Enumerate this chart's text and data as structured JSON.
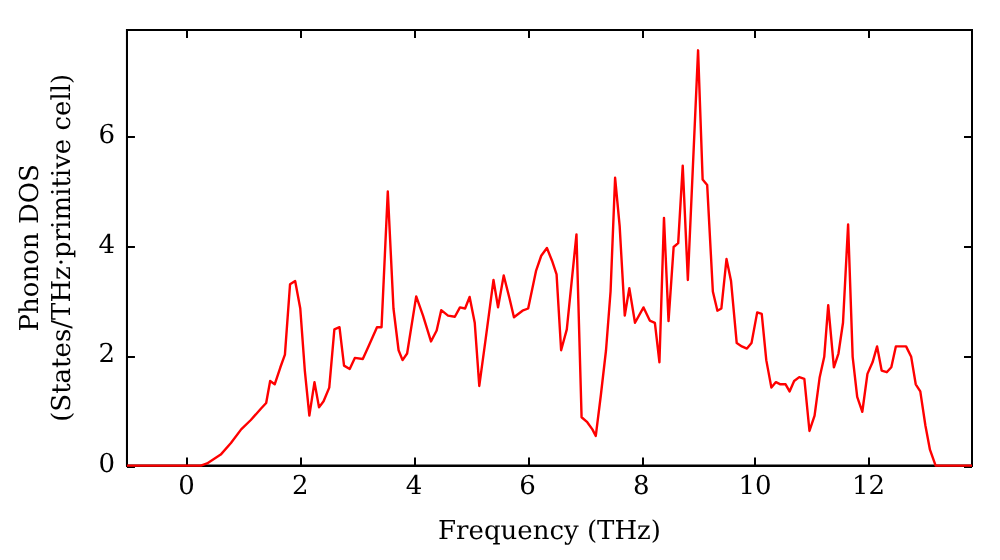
{
  "chart_data": {
    "type": "line",
    "xlabel": "Frequency (THz)",
    "ylabel": "Phonon DOS\n(States/THz·primitive cell)",
    "xlim": [
      -1.05,
      13.82
    ],
    "ylim": [
      0,
      7.93
    ],
    "xticks": [
      0,
      2,
      4,
      6,
      8,
      10,
      12
    ],
    "yticks": [
      0,
      2,
      4,
      6
    ],
    "grid": false,
    "legend": false,
    "marker": "none",
    "line_style": "solid",
    "series": [
      {
        "color": "#ff0000",
        "x": [
          -1.05,
          0.25,
          0.36,
          0.6,
          0.78,
          0.96,
          1.13,
          1.31,
          1.4,
          1.47,
          1.55,
          1.65,
          1.73,
          1.82,
          1.91,
          2.0,
          2.08,
          2.16,
          2.25,
          2.33,
          2.41,
          2.51,
          2.6,
          2.69,
          2.77,
          2.87,
          2.96,
          3.1,
          3.2,
          3.35,
          3.43,
          3.54,
          3.64,
          3.73,
          3.8,
          3.88,
          4.04,
          4.16,
          4.3,
          4.4,
          4.48,
          4.6,
          4.72,
          4.81,
          4.9,
          4.98,
          5.07,
          5.15,
          5.26,
          5.4,
          5.48,
          5.58,
          5.68,
          5.76,
          5.91,
          6.01,
          6.15,
          6.24,
          6.34,
          6.43,
          6.51,
          6.59,
          6.69,
          6.86,
          6.95,
          7.05,
          7.14,
          7.2,
          7.29,
          7.38,
          7.46,
          7.54,
          7.62,
          7.71,
          7.79,
          7.89,
          8.04,
          8.15,
          8.24,
          8.32,
          8.4,
          8.48,
          8.57,
          8.65,
          8.73,
          8.82,
          9.0,
          9.08,
          9.16,
          9.26,
          9.34,
          9.41,
          9.5,
          9.58,
          9.68,
          9.77,
          9.86,
          9.94,
          10.04,
          10.12,
          10.2,
          10.29,
          10.37,
          10.45,
          10.54,
          10.61,
          10.69,
          10.78,
          10.87,
          10.96,
          11.05,
          11.14,
          11.22,
          11.29,
          11.39,
          11.47,
          11.55,
          11.64,
          11.72,
          11.8,
          11.89,
          11.98,
          12.07,
          12.15,
          12.23,
          12.32,
          12.4,
          12.48,
          12.66,
          12.75,
          12.83,
          12.91,
          13.0,
          13.08,
          13.18,
          13.82
        ],
        "values": [
          0,
          0,
          0.04,
          0.2,
          0.41,
          0.66,
          0.83,
          1.04,
          1.14,
          1.54,
          1.48,
          1.79,
          2.02,
          3.3,
          3.36,
          2.86,
          1.73,
          0.91,
          1.52,
          1.06,
          1.17,
          1.42,
          2.48,
          2.52,
          1.82,
          1.76,
          1.96,
          1.94,
          2.17,
          2.52,
          2.52,
          4.99,
          2.86,
          2.1,
          1.92,
          2.04,
          3.08,
          2.73,
          2.26,
          2.46,
          2.83,
          2.73,
          2.71,
          2.88,
          2.86,
          3.07,
          2.6,
          1.45,
          2.29,
          3.38,
          2.88,
          3.46,
          3.05,
          2.7,
          2.82,
          2.86,
          3.55,
          3.82,
          3.96,
          3.73,
          3.48,
          2.1,
          2.48,
          4.21,
          0.88,
          0.79,
          0.66,
          0.54,
          1.29,
          2.1,
          3.17,
          5.24,
          4.36,
          2.73,
          3.23,
          2.6,
          2.88,
          2.64,
          2.6,
          1.88,
          4.51,
          2.63,
          3.98,
          4.05,
          5.46,
          3.38,
          7.56,
          5.21,
          5.11,
          3.17,
          2.82,
          2.86,
          3.76,
          3.36,
          2.23,
          2.17,
          2.13,
          2.23,
          2.79,
          2.76,
          1.92,
          1.42,
          1.52,
          1.48,
          1.48,
          1.35,
          1.54,
          1.61,
          1.58,
          0.63,
          0.91,
          1.61,
          1.98,
          2.92,
          1.79,
          2.04,
          2.6,
          4.39,
          1.98,
          1.25,
          0.98,
          1.67,
          1.88,
          2.17,
          1.73,
          1.7,
          1.79,
          2.17,
          2.17,
          1.98,
          1.48,
          1.35,
          0.73,
          0.29,
          0,
          0
        ]
      }
    ]
  }
}
